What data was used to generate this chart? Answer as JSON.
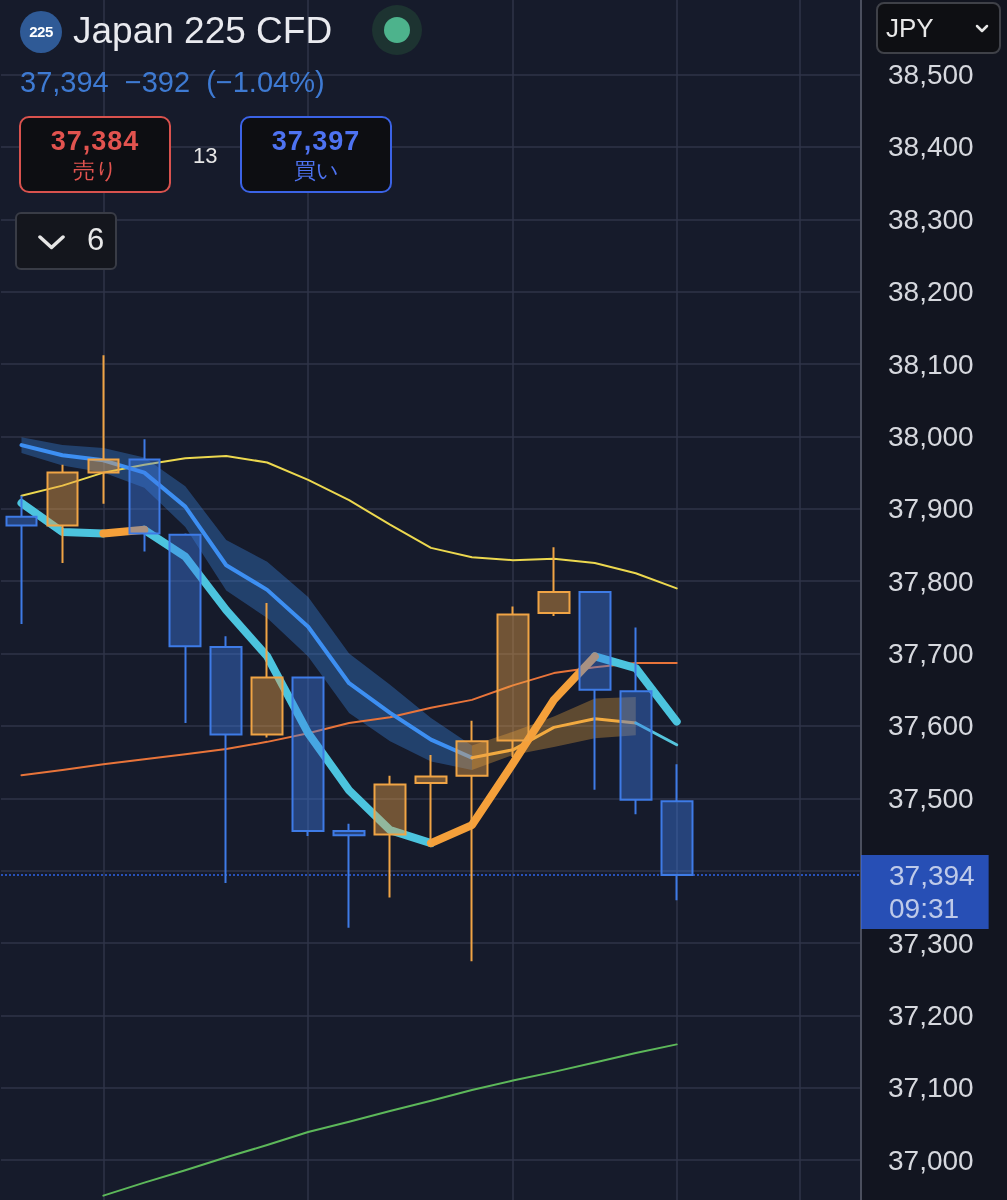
{
  "chart_data": {
    "type": "candlestick",
    "title": "Japan 225 CFD",
    "subtitle": "37,394 −392 (−1.04%)",
    "annotations": [
      "225",
      "37,384",
      "売り",
      "13",
      "37,397",
      "買い",
      "6",
      "JPY"
    ],
    "categories": [
      null,
      null,
      null,
      null,
      null,
      null,
      null,
      null,
      null,
      null,
      null,
      null,
      null,
      null,
      null,
      null,
      null,
      null,
      null,
      null,
      null
    ],
    "ohlc": [
      [
        37889,
        37918,
        37741,
        37877
      ],
      [
        37877,
        37961,
        37825,
        37950
      ],
      [
        37950,
        38112,
        37907,
        37968
      ],
      [
        37968,
        37996,
        37841,
        37866
      ],
      [
        37864,
        37866,
        37604,
        37710
      ],
      [
        37709,
        37724,
        37383,
        37588
      ],
      [
        37588,
        37770,
        37584,
        37667
      ],
      [
        37667,
        37667,
        37448,
        37455
      ],
      [
        37455,
        37465,
        37321,
        37449
      ],
      [
        37450,
        37531,
        37363,
        37519
      ],
      [
        37521,
        37560,
        37434,
        37530
      ],
      [
        37531,
        37607,
        37275,
        37579
      ],
      [
        37580,
        37765,
        37557,
        37754
      ],
      [
        37756,
        37847,
        37752,
        37785
      ],
      [
        37785,
        37785,
        37512,
        37650
      ],
      [
        37648,
        37736,
        37478,
        37498
      ],
      [
        37496,
        37547,
        37359,
        37394
      ],
      null,
      null,
      null,
      null
    ],
    "colors": [
      "#3e7be6",
      "#f0a445",
      "#f0a445",
      "#3e7be6",
      "#3e7be6",
      "#3e7be6",
      "#f0a445",
      "#3e7be6",
      "#3e7be6",
      "#f0a445",
      "#f0a445",
      "#f0a445",
      "#f0a445",
      "#f0a445",
      "#3e7be6",
      "#3e7be6",
      "#3e7be6",
      null,
      null,
      null,
      null
    ],
    "series": [
      {
        "type": "line",
        "color": "#5db85a",
        "values": [
          null,
          null,
          36951,
          36969,
          36986,
          37004,
          37021,
          37039,
          37053,
          37068,
          37082,
          37097,
          37110,
          37122,
          37135,
          37148,
          37160,
          null,
          null,
          null,
          null
        ]
      },
      {
        "type": "line",
        "color": "#e8743a",
        "values": [
          37532,
          37539,
          37547,
          37554,
          37561,
          37568,
          37578,
          37590,
          37604,
          37612,
          37625,
          37636,
          37656,
          37673,
          37681,
          37687,
          37687,
          null,
          null,
          null,
          null
        ]
      },
      {
        "type": "line",
        "color": "#ecd84f",
        "values": [
          37918,
          37932,
          37950,
          37961,
          37970,
          37973,
          37964,
          37940,
          37912,
          37878,
          37846,
          37833,
          37829,
          37831,
          37825,
          37811,
          37790,
          null,
          null,
          null,
          null
        ]
      },
      {
        "type": "line",
        "color": "#3d8ff2",
        "values": [
          37988,
          37974,
          37967,
          37950,
          37903,
          37822,
          37788,
          37737,
          37659,
          37618,
          37581,
          37556,
          null,
          null,
          null,
          null,
          null,
          null,
          null,
          null,
          null
        ],
        "lower": [
          37977,
          37960,
          37950,
          37929,
          37875,
          37787,
          37749,
          37696,
          37618,
          37579,
          37551,
          37539,
          null,
          null,
          null,
          null,
          null,
          null,
          null,
          null,
          null
        ],
        "upper": [
          37999,
          37988,
          37984,
          37971,
          37931,
          37857,
          37827,
          37778,
          37700,
          37657,
          37611,
          37573,
          null,
          null,
          null,
          null,
          null,
          null,
          null,
          null,
          null
        ]
      },
      {
        "type": "line",
        "color": "#f2aa40",
        "values": [
          null,
          null,
          null,
          null,
          null,
          null,
          null,
          null,
          null,
          null,
          null,
          37556,
          37567,
          37598,
          37610,
          37604,
          null,
          null,
          null,
          null,
          null
        ],
        "lower": [
          null,
          null,
          null,
          null,
          null,
          null,
          null,
          null,
          null,
          null,
          null,
          37539,
          37560,
          37571,
          37583,
          37587,
          null,
          null,
          null,
          null,
          null
        ],
        "upper": [
          null,
          null,
          null,
          null,
          null,
          null,
          null,
          null,
          null,
          null,
          null,
          37573,
          37592,
          37613,
          37638,
          37640,
          null,
          null,
          null,
          null,
          null
        ]
      },
      {
        "type": "line",
        "color": "#55c4dc",
        "values": [
          null,
          null,
          null,
          null,
          null,
          null,
          null,
          null,
          null,
          null,
          null,
          null,
          null,
          null,
          null,
          37604,
          37574,
          null,
          null,
          null,
          null
        ]
      },
      {
        "type": "line",
        "color": "#4cc4de",
        "values": [
          37908,
          37868,
          37866,
          null,
          null,
          null,
          null,
          null,
          null,
          null,
          null,
          null,
          null,
          null,
          null,
          null,
          null,
          null,
          null,
          null,
          null
        ]
      },
      {
        "type": "line",
        "color": "#4cc4de",
        "values": [
          null,
          null,
          null,
          37871,
          37834,
          37760,
          37696,
          37590,
          37511,
          37456,
          37438,
          null,
          null,
          null,
          37696,
          37680,
          37606,
          null,
          null,
          null,
          null
        ]
      },
      {
        "type": "line",
        "color": "#f5a03a",
        "values": [
          null,
          null,
          37866,
          37871,
          null,
          null,
          null,
          null,
          null,
          null,
          37438,
          37463,
          37548,
          37636,
          37696,
          null,
          null,
          null,
          null,
          null,
          null
        ]
      }
    ],
    "ylim": [
      36945,
      38603
    ],
    "yticks": [
      {
        "value": 37000,
        "label": "37,000"
      },
      {
        "value": 37100,
        "label": "37,100"
      },
      {
        "value": 37200,
        "label": "37,200"
      },
      {
        "value": 37300,
        "label": "37,300"
      },
      {
        "value": 37400,
        "label": null
      },
      {
        "value": 37500,
        "label": "37,500"
      },
      {
        "value": 37600,
        "label": "37,600"
      },
      {
        "value": 37700,
        "label": "37,700"
      },
      {
        "value": 37800,
        "label": "37,800"
      },
      {
        "value": 37900,
        "label": "37,900"
      },
      {
        "value": 38000,
        "label": "38,000"
      },
      {
        "value": 38100,
        "label": "38,100"
      },
      {
        "value": 38200,
        "label": "38,200"
      },
      {
        "value": 38300,
        "label": "38,300"
      },
      {
        "value": 38400,
        "label": "38,400"
      },
      {
        "value": 38500,
        "label": "38,500"
      }
    ],
    "grid": true,
    "tick_labels": "y",
    "ref_lines": [
      {
        "axis": "y",
        "value": 37394,
        "label": "37,394\n09:31",
        "color": "#3068f5",
        "line_style": "dotted"
      }
    ]
  }
}
